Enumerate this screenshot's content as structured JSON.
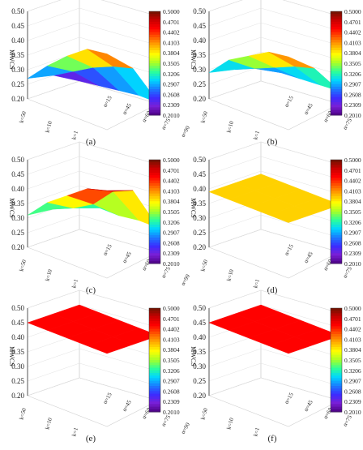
{
  "colorbar": {
    "ticks": [
      "0.5000",
      "0.4701",
      "0.4402",
      "0.4103",
      "0.3804",
      "0.3505",
      "0.3206",
      "0.2907",
      "0.2608",
      "0.2309",
      "0.2010"
    ],
    "min": 0.201,
    "max": 0.5,
    "colors": [
      "#4b0082",
      "#7a1fd6",
      "#3b2cff",
      "#1a7bff",
      "#00d5ff",
      "#2bff9a",
      "#a6ff28",
      "#ffff00",
      "#ffb000",
      "#ff5a00",
      "#ff0000",
      "#c80000",
      "#6b1400"
    ]
  },
  "chart_data": [
    {
      "type": "surface3d",
      "caption": "(a)",
      "zlabel": "MWCS",
      "zticks": [
        "0.20",
        "0.25",
        "0.30",
        "0.35",
        "0.40",
        "0.45",
        "0.50"
      ],
      "zlim": [
        0.2,
        0.5
      ],
      "k_ticks": [
        "k=1",
        "k=10",
        "k=50"
      ],
      "alpha_ticks": [
        "α=15",
        "α=45",
        "α=60",
        "α=75",
        "α=90"
      ],
      "k": [
        1,
        10,
        50
      ],
      "alpha": [
        15,
        45,
        60,
        75,
        90
      ],
      "z": [
        [
          0.27,
          0.34,
          0.4,
          0.45,
          0.46
        ],
        [
          0.25,
          0.29,
          0.33,
          0.36,
          0.38
        ],
        [
          0.2,
          0.21,
          0.22,
          0.23,
          0.23
        ]
      ]
    },
    {
      "type": "surface3d",
      "caption": "(b)",
      "zlabel": "MWCS",
      "zticks": [
        "0.20",
        "0.25",
        "0.30",
        "0.35",
        "0.40",
        "0.45",
        "0.50"
      ],
      "zlim": [
        0.2,
        0.5
      ],
      "k_ticks": [
        "k=1",
        "k=10",
        "k=50"
      ],
      "alpha_ticks": [
        "α=15",
        "α=45",
        "α=60",
        "α=75",
        "α=90"
      ],
      "k": [
        1,
        10,
        50
      ],
      "alpha": [
        15,
        45,
        60,
        75,
        90
      ],
      "z": [
        [
          0.29,
          0.36,
          0.4,
          0.44,
          0.45
        ],
        [
          0.27,
          0.3,
          0.33,
          0.36,
          0.38
        ],
        [
          0.25,
          0.255,
          0.26,
          0.265,
          0.27
        ]
      ]
    },
    {
      "type": "surface3d",
      "caption": "(c)",
      "zlabel": "MWCS",
      "zticks": [
        "0.20",
        "0.25",
        "0.30",
        "0.35",
        "0.40",
        "0.45",
        "0.50"
      ],
      "zlim": [
        0.2,
        0.5
      ],
      "k_ticks": [
        "k=1",
        "k=10",
        "k=50"
      ],
      "alpha_ticks": [
        "α=15",
        "α=45",
        "α=60",
        "α=75",
        "α=90"
      ],
      "k": [
        1,
        10,
        50
      ],
      "alpha": [
        15,
        45,
        60,
        75,
        90
      ],
      "z": [
        [
          0.31,
          0.38,
          0.43,
          0.48,
          0.5
        ],
        [
          0.3,
          0.33,
          0.37,
          0.44,
          0.47
        ],
        [
          0.29,
          0.3,
          0.3,
          0.31,
          0.31
        ]
      ]
    },
    {
      "type": "surface3d",
      "caption": "(d)",
      "zlabel": "MWCS",
      "zticks": [
        "0.20",
        "0.25",
        "0.30",
        "0.35",
        "0.40",
        "0.45",
        "0.50"
      ],
      "zlim": [
        0.2,
        0.5
      ],
      "k_ticks": [
        "k=1",
        "k=10",
        "k=50"
      ],
      "alpha_ticks": [
        "α=15",
        "α=45",
        "α=60",
        "α=75",
        "α=90"
      ],
      "k": [
        1,
        10,
        50
      ],
      "alpha": [
        15,
        45,
        60,
        75,
        90
      ],
      "z": [
        [
          0.39,
          0.39,
          0.39,
          0.39,
          0.39
        ],
        [
          0.39,
          0.39,
          0.39,
          0.39,
          0.39
        ],
        [
          0.39,
          0.39,
          0.39,
          0.39,
          0.39
        ]
      ]
    },
    {
      "type": "surface3d",
      "caption": "(e)",
      "zlabel": "MWCS",
      "zticks": [
        "0.20",
        "0.25",
        "0.30",
        "0.35",
        "0.40",
        "0.45",
        "0.50"
      ],
      "zlim": [
        0.2,
        0.5
      ],
      "k_ticks": [
        "k=1",
        "k=10",
        "k=50"
      ],
      "alpha_ticks": [
        "α=15",
        "α=45",
        "α=60",
        "α=75",
        "α=90"
      ],
      "k": [
        1,
        10,
        50
      ],
      "alpha": [
        15,
        45,
        60,
        75,
        90
      ],
      "z": [
        [
          0.45,
          0.45,
          0.45,
          0.45,
          0.45
        ],
        [
          0.45,
          0.45,
          0.45,
          0.45,
          0.45
        ],
        [
          0.45,
          0.45,
          0.45,
          0.45,
          0.45
        ]
      ]
    },
    {
      "type": "surface3d",
      "caption": "(f)",
      "zlabel": "MWCS",
      "zticks": [
        "0.20",
        "0.25",
        "0.30",
        "0.35",
        "0.40",
        "0.45",
        "0.50"
      ],
      "zlim": [
        0.2,
        0.5
      ],
      "k_ticks": [
        "k=1",
        "k=10",
        "k=50"
      ],
      "alpha_ticks": [
        "α=15",
        "α=45",
        "α=60",
        "α=75",
        "α=90"
      ],
      "k": [
        1,
        10,
        50
      ],
      "alpha": [
        15,
        45,
        60,
        75,
        90
      ],
      "z": [
        [
          0.45,
          0.45,
          0.45,
          0.45,
          0.45
        ],
        [
          0.45,
          0.45,
          0.45,
          0.45,
          0.45
        ],
        [
          0.45,
          0.45,
          0.45,
          0.45,
          0.45
        ]
      ]
    }
  ]
}
